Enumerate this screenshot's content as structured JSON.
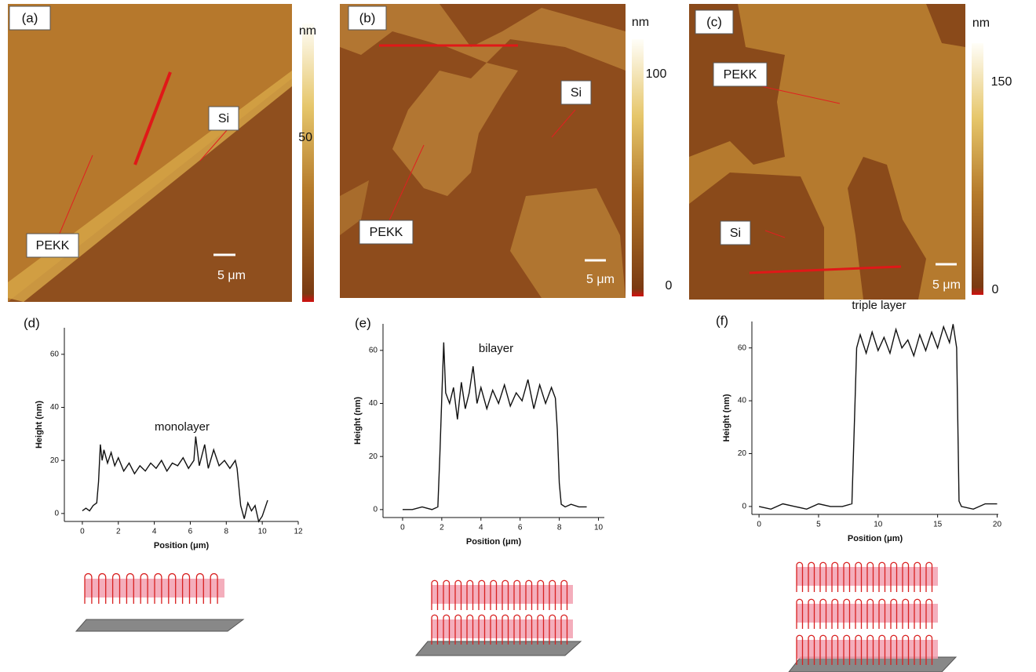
{
  "panels": [
    {
      "label": "(a)",
      "unit": "nm",
      "colorbar_ticks": [
        50
      ],
      "labels": [
        "PEKK",
        "Si"
      ],
      "scale": "5 μm"
    },
    {
      "label": "(b)",
      "unit": "nm",
      "colorbar_ticks": [
        100,
        0
      ],
      "labels": [
        "PEKK",
        "Si"
      ],
      "scale": "5 μm"
    },
    {
      "label": "(c)",
      "unit": "nm",
      "colorbar_ticks": [
        150,
        0
      ],
      "labels": [
        "PEKK",
        "Si"
      ],
      "scale": "5 μm"
    }
  ],
  "chart_data": [
    {
      "type": "line",
      "panel_label": "(d)",
      "annotation": "monolayer",
      "x_label": "Position (μm)",
      "y_label": "Height (nm)",
      "color": "#111111",
      "x": [
        0,
        0.2,
        0.4,
        0.6,
        0.8,
        0.9,
        1.0,
        1.1,
        1.2,
        1.4,
        1.6,
        1.8,
        2.0,
        2.3,
        2.6,
        2.9,
        3.2,
        3.5,
        3.8,
        4.1,
        4.4,
        4.7,
        5.0,
        5.3,
        5.6,
        5.9,
        6.2,
        6.3,
        6.5,
        6.8,
        7.0,
        7.3,
        7.6,
        7.9,
        8.2,
        8.5,
        8.6,
        8.8,
        9.0,
        9.2,
        9.4,
        9.6,
        9.8,
        10.0,
        10.3
      ],
      "values": [
        1,
        2,
        1,
        3,
        4,
        12,
        26,
        20,
        24,
        19,
        23,
        18,
        21,
        16,
        19,
        15,
        18,
        16,
        19,
        17,
        20,
        16,
        19,
        18,
        21,
        17,
        20,
        29,
        18,
        26,
        17,
        24,
        18,
        20,
        17,
        20,
        17,
        3,
        -2,
        4,
        1,
        3,
        -3,
        -1,
        5
      ],
      "xlim": [
        -1,
        12
      ],
      "ylim": [
        -3,
        70
      ],
      "xticks": [
        0,
        2,
        4,
        6,
        8,
        10,
        12
      ],
      "yticks": [
        0,
        20,
        40,
        60
      ]
    },
    {
      "type": "line",
      "panel_label": "(e)",
      "annotation": "bilayer",
      "x_label": "Position (μm)",
      "y_label": "Height (nm)",
      "color": "#111111",
      "x": [
        0,
        0.5,
        1.0,
        1.5,
        1.8,
        1.9,
        2.0,
        2.1,
        2.2,
        2.4,
        2.6,
        2.8,
        3.0,
        3.2,
        3.4,
        3.6,
        3.8,
        4.0,
        4.3,
        4.6,
        4.9,
        5.2,
        5.5,
        5.8,
        6.1,
        6.4,
        6.7,
        7.0,
        7.3,
        7.6,
        7.8,
        7.9,
        8.0,
        8.1,
        8.3,
        8.6,
        9.0,
        9.4
      ],
      "values": [
        0,
        0,
        1,
        0,
        1,
        20,
        42,
        63,
        44,
        40,
        46,
        34,
        48,
        38,
        44,
        54,
        40,
        46,
        38,
        45,
        40,
        47,
        39,
        44,
        41,
        49,
        38,
        47,
        40,
        46,
        42,
        30,
        10,
        2,
        1,
        2,
        1,
        1
      ],
      "xlim": [
        -1,
        10.3
      ],
      "ylim": [
        -3,
        70
      ],
      "xticks": [
        0,
        2,
        4,
        6,
        8,
        10
      ],
      "yticks": [
        0,
        20,
        40,
        60
      ]
    },
    {
      "type": "line",
      "panel_label": "(f)",
      "annotation": "triple layer",
      "x_label": "Position (μm)",
      "y_label": "Height (nm)",
      "color": "#111111",
      "x": [
        0,
        1,
        2,
        3,
        4,
        5,
        6,
        7,
        7.8,
        8.0,
        8.2,
        8.5,
        9,
        9.5,
        10,
        10.5,
        11,
        11.5,
        12,
        12.5,
        13,
        13.5,
        14,
        14.5,
        15,
        15.5,
        16,
        16.3,
        16.6,
        16.8,
        17,
        18,
        19,
        20
      ],
      "values": [
        0,
        -1,
        1,
        0,
        -1,
        1,
        0,
        0,
        1,
        30,
        60,
        65,
        58,
        66,
        59,
        64,
        58,
        67,
        60,
        63,
        57,
        65,
        59,
        66,
        60,
        68,
        62,
        69,
        60,
        2,
        0,
        -1,
        1,
        1
      ],
      "xlim": [
        -0.6,
        20.1
      ],
      "ylim": [
        -3,
        70
      ],
      "xticks": [
        0,
        5,
        10,
        15,
        20
      ],
      "yticks": [
        0,
        20,
        40,
        60
      ]
    }
  ]
}
